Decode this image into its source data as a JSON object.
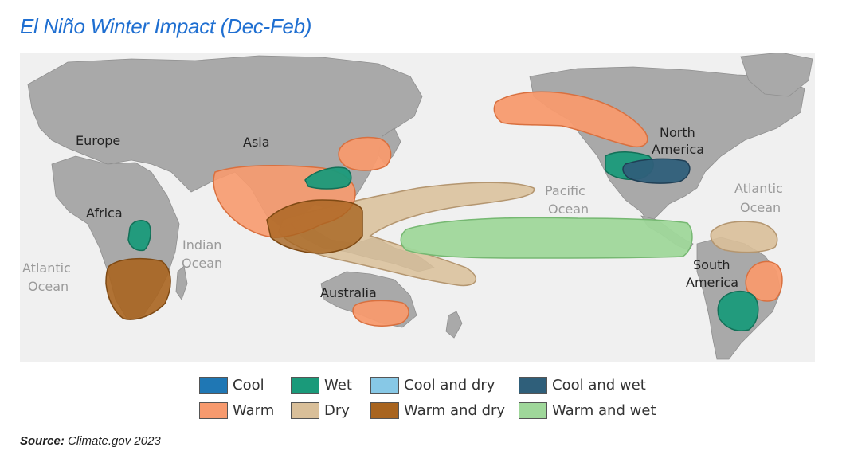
{
  "title": "El Niño Winter Impact (Dec-Feb)",
  "source": {
    "label": "Source:",
    "text": "Climate.gov 2023"
  },
  "map_labels": {
    "europe": "Europe",
    "asia": "Asia",
    "africa": "Africa",
    "australia": "Australia",
    "north_america_1": "North",
    "north_america_2": "America",
    "south_america_1": "South",
    "south_america_2": "America",
    "pacific_1": "Pacific",
    "pacific_2": "Ocean",
    "atlantic_ne_1": "Atlantic",
    "atlantic_ne_2": "Ocean",
    "atlantic_w_1": "Atlantic",
    "atlantic_w_2": "Ocean",
    "indian_1": "Indian",
    "indian_2": "Ocean"
  },
  "legend": [
    {
      "label": "Cool",
      "color": "#1f77b4"
    },
    {
      "label": "Wet",
      "color": "#1a9a7a"
    },
    {
      "label": "Cool and dry",
      "color": "#87c8e6"
    },
    {
      "label": "Cool and wet",
      "color": "#2f5f7a"
    },
    {
      "label": "Warm",
      "color": "#f79a6e"
    },
    {
      "label": "Dry",
      "color": "#d9bf99"
    },
    {
      "label": "Warm and dry",
      "color": "#a8641f"
    },
    {
      "label": "Warm and wet",
      "color": "#9fd79a"
    }
  ]
}
